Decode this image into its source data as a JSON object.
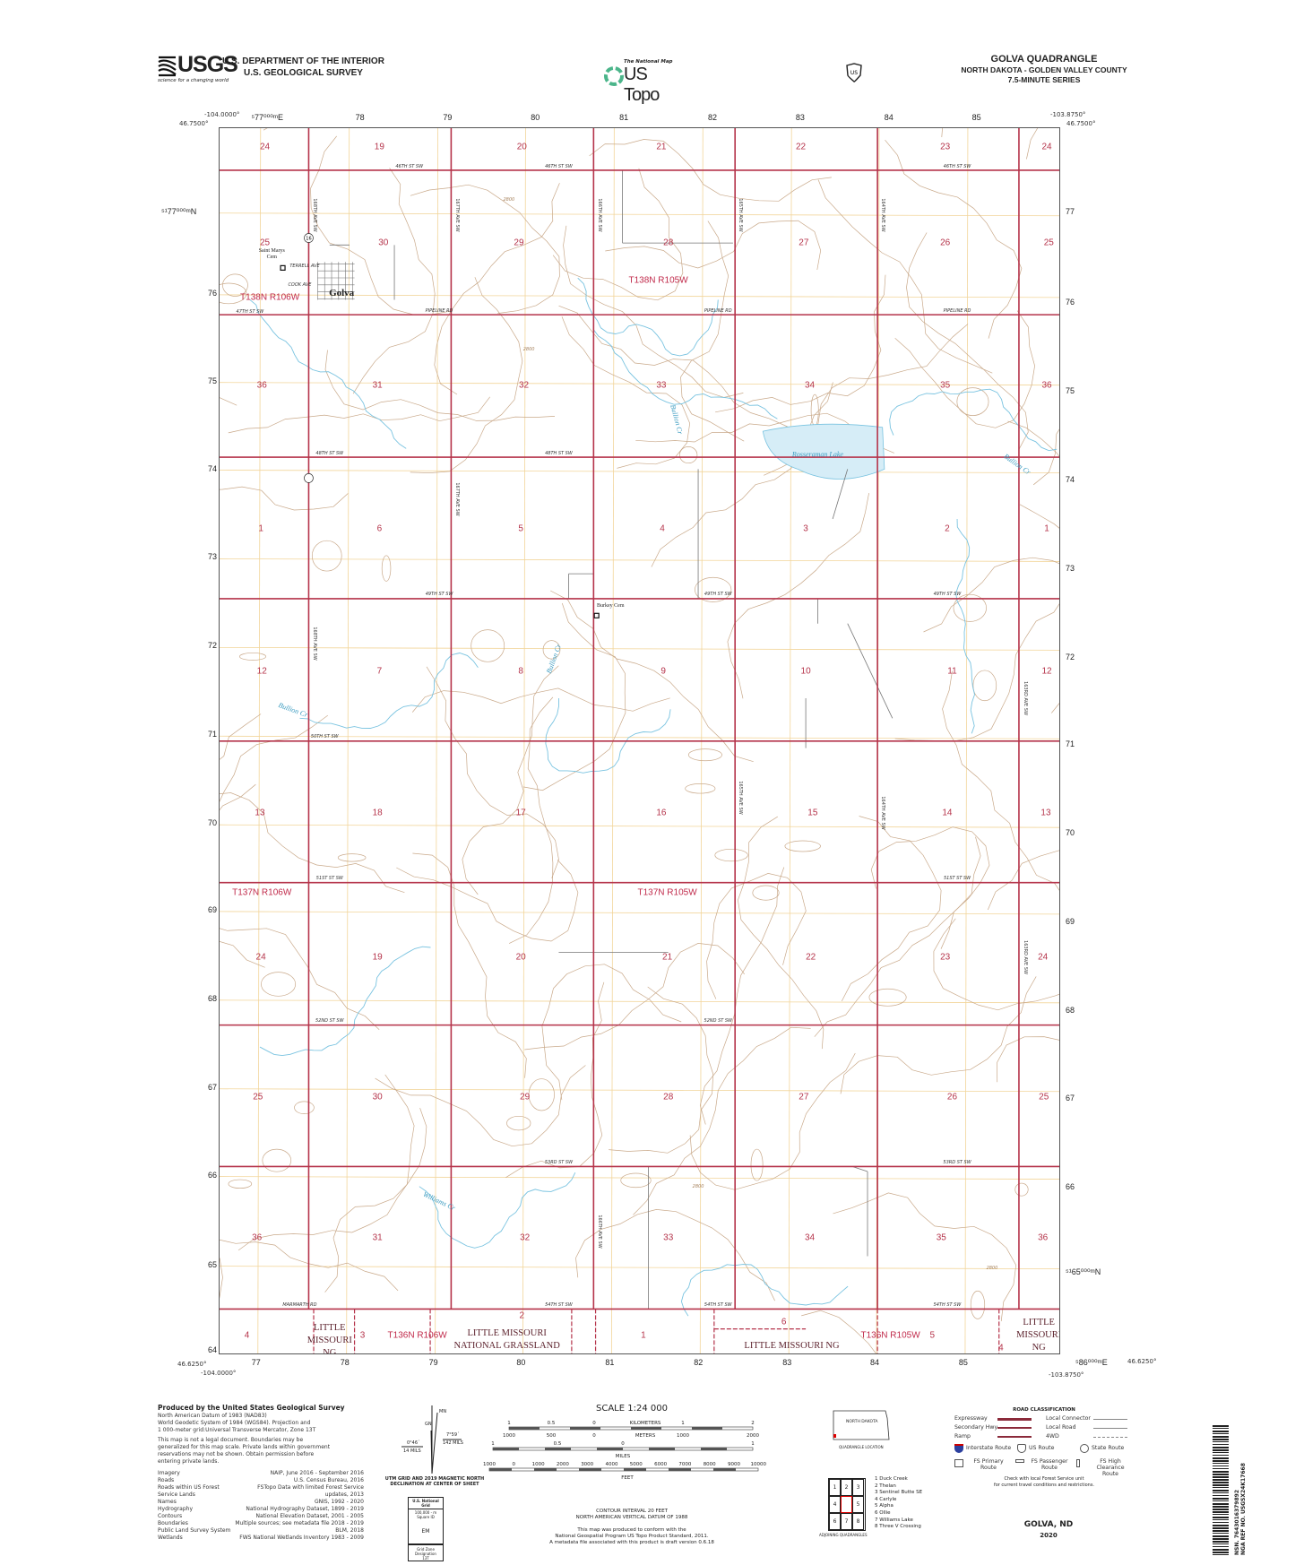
{
  "header": {
    "usgs_logo": "USGS",
    "usgs_tagline": "science for a changing world",
    "department": "U.S. DEPARTMENT OF THE INTERIOR",
    "survey": "U.S. GEOLOGICAL SURVEY",
    "national_map": "The National Map",
    "us_topo": "US Topo",
    "usfs_shield": "U.S. Forest Service shield",
    "quad_title": "GOLVA QUADRANGLE",
    "state_county": "NORTH DAKOTA - GOLDEN VALLEY COUNTY",
    "series": "7.5-MINUTE SERIES"
  },
  "corners": {
    "top_left_lon": "-104.0000°",
    "top_left_lat": "46.7500°",
    "top_right_lon": "-103.8750°",
    "top_right_lat": "46.7500°",
    "bottom_left_lat": "46.6250°",
    "bottom_left_lon": "-104.0000°",
    "bottom_right_lon": "-103.8750°",
    "bottom_right_lat": "46.6250°"
  },
  "grid": {
    "top_eastings": [
      "⁵77⁰⁰⁰ᵐE",
      "78",
      "79",
      "80",
      "81",
      "82",
      "83",
      "84",
      "85"
    ],
    "bottom_eastings": [
      "77",
      "78",
      "79",
      "80",
      "81",
      "82",
      "83",
      "84",
      "85",
      "⁵86⁰⁰⁰ᵐE"
    ],
    "left_northings": [
      "⁵¹77⁰⁰⁰ᵐN",
      "76",
      "75",
      "74",
      "73",
      "72",
      "71",
      "70",
      "69",
      "68",
      "67",
      "66",
      "65",
      "64"
    ],
    "right_northings": [
      "77",
      "76",
      "75",
      "74",
      "73",
      "72",
      "71",
      "70",
      "69",
      "68",
      "67",
      "66",
      "⁵¹65⁰⁰⁰ᵐN"
    ]
  },
  "map": {
    "sections": [
      [
        "24",
        "19",
        "20",
        "21",
        "22",
        "23",
        "24"
      ],
      [
        "25",
        "30",
        "29",
        "28",
        "27",
        "26",
        "25"
      ],
      [
        "36",
        "31",
        "32",
        "33",
        "34",
        "35",
        "36"
      ],
      [
        "1",
        "6",
        "5",
        "4",
        "3",
        "2",
        "1"
      ],
      [
        "12",
        "7",
        "8",
        "9",
        "10",
        "11",
        "12"
      ],
      [
        "13",
        "18",
        "17",
        "16",
        "15",
        "14",
        "13"
      ],
      [
        "24",
        "19",
        "20",
        "21",
        "22",
        "23",
        "24"
      ],
      [
        "25",
        "30",
        "29",
        "28",
        "27",
        "26",
        "25"
      ],
      [
        "36",
        "31",
        "32",
        "33",
        "34",
        "35",
        "36"
      ],
      [
        "4",
        "3",
        "2",
        "1",
        "6",
        "5",
        "4"
      ]
    ],
    "townships": [
      "T138N R106W",
      "T138N R105W",
      "T137N R106W",
      "T137N R105W",
      "T136N R106W",
      "T136N R105W"
    ],
    "grasslands": [
      [
        "LITTLE",
        "MISSOURI",
        "NG"
      ],
      [
        "LITTLE MISSOURI",
        "NATIONAL GRASSLAND"
      ],
      [
        "LITTLE MISSOURI NG"
      ],
      [
        "LITTLE",
        "MISSOURI",
        "NG"
      ]
    ],
    "places": {
      "town": "Golva",
      "saint_marys_cem": "Saint Marys Cem",
      "burkey_cem": "Burkey Cem"
    },
    "water": {
      "lake": "Rosseraman Lake",
      "bullion_1": "Bullion Cr",
      "bullion_2": "Bullion Cr",
      "bullion_3": "Bullion Cr",
      "bullion_4": "Bullion Cr",
      "williams": "Williams Cr"
    },
    "roads_h": [
      "46TH ST SW",
      "46TH ST SW",
      "46TH ST SW",
      "PIPELINE RD",
      "PIPELINE RD",
      "PIPELINE RD",
      "47TH ST SW",
      "48TH ST SW",
      "48TH ST SW",
      "49TH ST SW",
      "49TH ST SW",
      "49TH ST SW",
      "50TH ST SW",
      "51ST ST SW",
      "51ST ST SW",
      "52ND ST SW",
      "52ND ST SW",
      "53RD ST SW",
      "53RD ST SW",
      "MARMARTH RD",
      "54TH ST SW",
      "54TH ST SW",
      "54TH ST SW",
      "TERRELL AVE",
      "COOK AVE"
    ],
    "roads_v": [
      "168TH AVE SW",
      "167TH AVE SW",
      "166TH AVE SW",
      "165TH AVE SW",
      "164TH AVE SW",
      "163RD AVE SW",
      "168TH AVE SW",
      "167TH AVE SW",
      "166TH AVE SW",
      "165TH AVE SW",
      "164TH AVE SW",
      "163RD AVE SW"
    ],
    "route_shield": "16",
    "contour_label": "2800",
    "colors": {
      "road": "#b5334a",
      "local_road": "#777777",
      "contour": "#c9a98a",
      "water": "#79c3e0",
      "utm_grid": "#f2d59a",
      "section_label": "#b5334a"
    }
  },
  "footer": {
    "produced_by": "Produced by the United States Geological Survey",
    "datum_lines": [
      "North American Datum of 1983 (NAD83)",
      "World Geodetic System of 1984 (WGS84). Projection and",
      "1 000-meter grid:Universal Transverse Mercator, Zone 13T"
    ],
    "legal_lines": [
      "This map is not a legal document. Boundaries may be",
      "generalized for this map scale. Private lands within government",
      "reservations may not be shown. Obtain permission before",
      "entering private lands."
    ],
    "sources": [
      [
        "Imagery",
        "NAIP, June 2016 - September 2016"
      ],
      [
        "Roads",
        "U.S. Census Bureau, 2016"
      ],
      [
        "Roads within US Forest Service Lands",
        "FSTopo Data with limited Forest Service updates, 2013"
      ],
      [
        "Names",
        "GNIS, 1992 - 2020"
      ],
      [
        "Hydrography",
        "National Hydrography Dataset, 1899 - 2019"
      ],
      [
        "Contours",
        "National Elevation Dataset, 2001 - 2005"
      ],
      [
        "Boundaries",
        "Multiple sources; see metadata file 2018 - 2019"
      ],
      [
        "Public Land Survey System",
        "BLM, 2018"
      ],
      [
        "Wetlands",
        "FWS National Wetlands Inventory 1983 - 2009"
      ]
    ],
    "declination": {
      "mn": "MN",
      "gn": "GN",
      "east": "7°59´",
      "east_mils": "142 MILS",
      "west": "0°46´",
      "west_mils": "14 MILS",
      "caption_1": "UTM GRID AND 2019 MAGNETIC NORTH",
      "caption_2": "DECLINATION AT CENTER OF SHEET"
    },
    "national_grid": {
      "title": "U.S. National Grid",
      "subtitle": "100,000 - m Square ID",
      "square_id": "EM",
      "gzd_label": "Grid Zone Designation",
      "gzd": "13T"
    },
    "scale": {
      "title": "SCALE 1:24 000",
      "km_labels": [
        "1",
        "0.5",
        "0",
        "KILOMETERS",
        "1",
        "2"
      ],
      "m_labels": [
        "1000",
        "500",
        "0",
        "METERS",
        "1000",
        "2000"
      ],
      "mi_labels": [
        "1",
        "0.5",
        "0",
        "1"
      ],
      "mi_unit": "MILES",
      "ft_labels": [
        "1000",
        "0",
        "1000",
        "2000",
        "3000",
        "4000",
        "5000",
        "6000",
        "7000",
        "8000",
        "9000",
        "10000"
      ],
      "ft_unit": "FEET"
    },
    "contour_interval": "CONTOUR INTERVAL 20 FEET",
    "vertical_datum": "NORTH AMERICAN VERTICAL DATUM OF 1988",
    "conform_lines": [
      "This map was produced to conform with the",
      "National Geospatial Program US Topo Product Standard, 2011.",
      "A metadata file associated with this product is draft version 0.6.18"
    ],
    "quad_location": {
      "state": "NORTH DAKOTA",
      "caption": "QUADRANGLE LOCATION"
    },
    "adjoining": {
      "cells": [
        "1",
        "2",
        "3",
        "4",
        "",
        "5",
        "6",
        "7",
        "8"
      ],
      "names": [
        "1 Duck Creek",
        "2 Thelan",
        "3 Sentinel Butte SE",
        "4 Carlyle",
        "5 Alpha",
        "6 Ollie",
        "7 Williams Lake",
        "8 Three V Crossing"
      ],
      "caption": "ADJOINING QUADRANGLES"
    },
    "road_class": {
      "title": "ROAD CLASSIFICATION",
      "left": [
        "Expressway",
        "Secondary Hwy",
        "Ramp"
      ],
      "right": [
        "Local Connector",
        "Local Road",
        "4WD"
      ],
      "routes": [
        "Interstate Route",
        "US Route",
        "State Route"
      ],
      "fs_routes": [
        "FS Primary Route",
        "FS Passenger Route",
        "FS High Clearance Route"
      ],
      "note_1": "Check with local Forest Service unit",
      "note_2": "for current travel conditions and restrictions."
    },
    "quad_name": "GOLVA, ND",
    "year": "2020",
    "barcode": {
      "nsn": "NSN. 7643016379892",
      "nga": "NGA REF NO. USGSX24K17668"
    }
  }
}
